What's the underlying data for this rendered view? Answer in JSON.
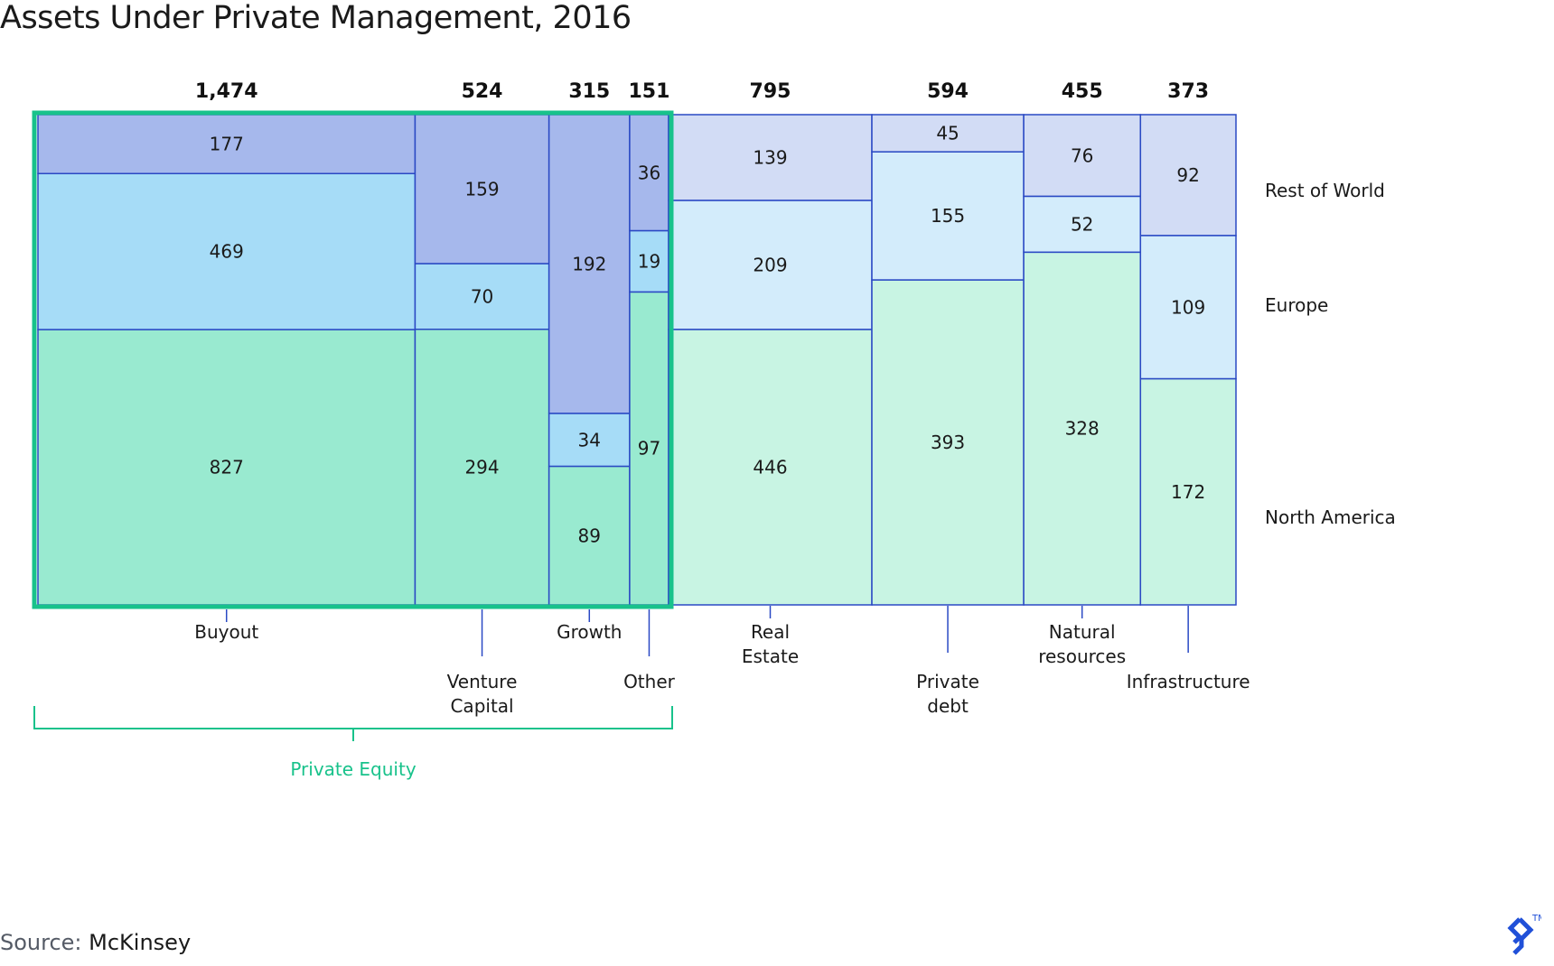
{
  "chart_data": {
    "type": "marimekko",
    "title": "Assets Under Private Management, 2016",
    "regions": [
      "North America",
      "Europe",
      "Rest of World"
    ],
    "region_colors": {
      "pe": {
        "North America": "#99ead0",
        "Europe": "#a6dcf7",
        "Rest of World": "#a6b8ec"
      },
      "other": {
        "North America": "#c8f4e3",
        "Europe": "#d3ecfb",
        "Rest of World": "#d2dcf5"
      }
    },
    "categories": [
      {
        "label": "Buyout",
        "total": "1,474",
        "group": "pe",
        "values": {
          "Rest of World": 177,
          "Europe": 469,
          "North America": 827
        }
      },
      {
        "label": "Venture Capital",
        "total": "524",
        "group": "pe",
        "values": {
          "Rest of World": 159,
          "Europe": 70,
          "North America": 294
        }
      },
      {
        "label": "Growth",
        "total": "315",
        "group": "pe",
        "values": {
          "Rest of World": 192,
          "Europe": 34,
          "North America": 89
        }
      },
      {
        "label": "Other",
        "total": "151",
        "group": "pe",
        "values": {
          "Rest of World": 36,
          "Europe": 19,
          "North America": 97
        }
      },
      {
        "label": "Real Estate",
        "total": "795",
        "group": "other",
        "values": {
          "Rest of World": 139,
          "Europe": 209,
          "North America": 446
        }
      },
      {
        "label": "Private debt",
        "total": "594",
        "group": "other",
        "values": {
          "Rest of World": 45,
          "Europe": 155,
          "North America": 393
        }
      },
      {
        "label": "Natural resources",
        "total": "455",
        "group": "other",
        "values": {
          "Rest of World": 76,
          "Europe": 52,
          "North America": 328
        }
      },
      {
        "label": "Infrastructure",
        "total": "373",
        "group": "other",
        "values": {
          "Rest of World": 92,
          "Europe": 109,
          "North America": 172
        }
      }
    ],
    "group_bracket": {
      "label": "Private Equity",
      "color": "#18c28b"
    },
    "border_color": "#2a49c4"
  },
  "source": {
    "label": "Source:",
    "value": "McKinsey"
  },
  "logo": {
    "icon": "toptal-logo-icon",
    "mark": "TM",
    "color": "#2050d8"
  }
}
